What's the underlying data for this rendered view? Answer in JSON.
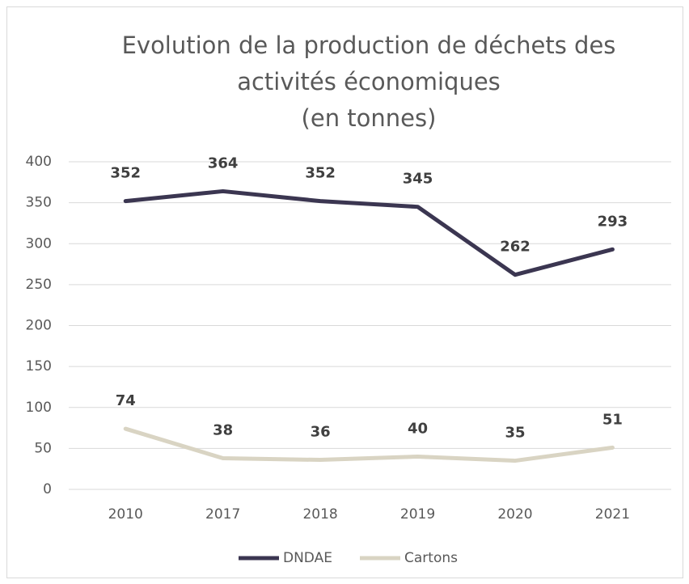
{
  "chart_data": {
    "type": "line",
    "title": [
      "Evolution de la production de déchets des",
      "activités économiques",
      "(en tonnes)"
    ],
    "categories": [
      "2010",
      "2017",
      "2018",
      "2019",
      "2020",
      "2021"
    ],
    "series": [
      {
        "name": "DNDAE",
        "color": "#3b3651",
        "values": [
          352,
          364,
          352,
          345,
          262,
          293
        ]
      },
      {
        "name": "Cartons",
        "color": "#d9d4c3",
        "values": [
          74,
          38,
          36,
          40,
          35,
          51
        ]
      }
    ],
    "ylim": [
      0,
      400
    ],
    "yticks": [
      0,
      50,
      100,
      150,
      200,
      250,
      300,
      350,
      400
    ],
    "grid": true,
    "legend": "bottom"
  }
}
